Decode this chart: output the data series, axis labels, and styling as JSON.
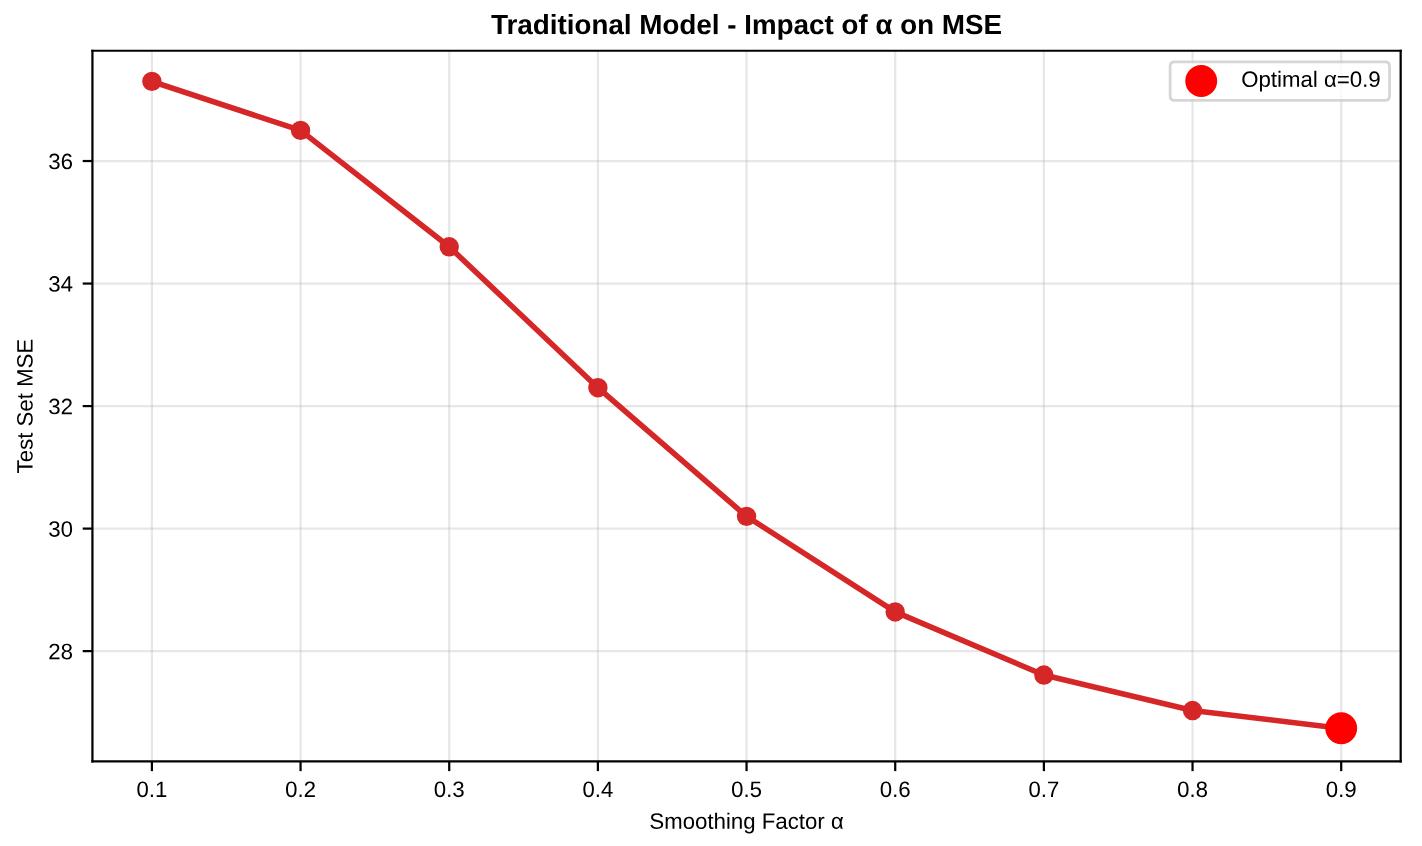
{
  "chart_data": {
    "type": "line",
    "title": "Traditional Model - Impact of α on MSE",
    "xlabel": "Smoothing Factor α",
    "ylabel": "Test Set MSE",
    "x": [
      0.1,
      0.2,
      0.3,
      0.4,
      0.5,
      0.6,
      0.7,
      0.8,
      0.9
    ],
    "series": [
      {
        "color": "#d62728",
        "marker": "circle",
        "line_style": "solid",
        "values": [
          37.3,
          36.5,
          34.6,
          32.3,
          30.2,
          28.64,
          27.61,
          27.03,
          26.74
        ]
      },
      {
        "type": "scatter",
        "name": "Optimal α=0.9",
        "color": "#ff0000",
        "marker": "circle",
        "x": [
          0.9
        ],
        "values": [
          26.74
        ]
      }
    ],
    "xlim": [
      0.06,
      0.94
    ],
    "ylim": [
      26.2,
      37.8
    ],
    "xticks": [
      0.1,
      0.2,
      0.3,
      0.4,
      0.5,
      0.6,
      0.7,
      0.8,
      0.9
    ],
    "yticks": [
      28,
      30,
      32,
      34,
      36
    ],
    "grid": true,
    "legend": "top right"
  }
}
